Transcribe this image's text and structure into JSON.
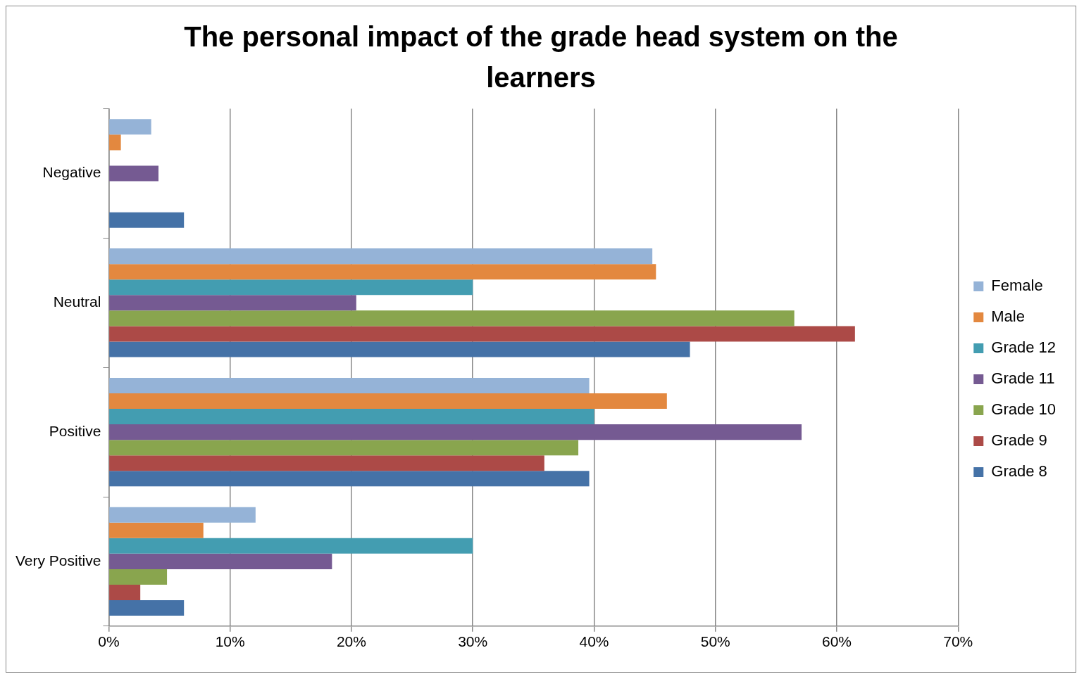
{
  "chart_data": {
    "type": "bar",
    "orientation": "horizontal",
    "title": "The personal impact of the grade head system on the learners",
    "categories": [
      "Negative",
      "Neutral",
      "Positive",
      "Very Positive"
    ],
    "series": [
      {
        "name": "Female",
        "color": "#95b3d7",
        "values": [
          3.5,
          44.8,
          39.6,
          12.1
        ]
      },
      {
        "name": "Male",
        "color": "#e3883f",
        "values": [
          1.0,
          45.1,
          46.0,
          7.8
        ]
      },
      {
        "name": "Grade 12",
        "color": "#439db1",
        "values": [
          null,
          30.0,
          40.0,
          30.0
        ]
      },
      {
        "name": "Grade 11",
        "color": "#755a92",
        "values": [
          4.1,
          20.4,
          57.1,
          18.4
        ]
      },
      {
        "name": "Grade 10",
        "color": "#89a54e",
        "values": [
          null,
          56.5,
          38.7,
          4.8
        ]
      },
      {
        "name": "Grade 9",
        "color": "#ac4a47",
        "values": [
          null,
          61.5,
          35.9,
          2.6
        ]
      },
      {
        "name": "Grade 8",
        "color": "#4572a7",
        "values": [
          6.2,
          47.9,
          39.6,
          6.2
        ]
      }
    ],
    "xlim": [
      0,
      70
    ],
    "xticks": [
      {
        "value": 0,
        "label": "0%"
      },
      {
        "value": 10,
        "label": "10%"
      },
      {
        "value": 20,
        "label": "20%"
      },
      {
        "value": 30,
        "label": "30%"
      },
      {
        "value": 40,
        "label": "40%"
      },
      {
        "value": 50,
        "label": "50%"
      },
      {
        "value": 60,
        "label": "60%"
      },
      {
        "value": 70,
        "label": "70%"
      }
    ],
    "grid": "x",
    "legend": "right"
  }
}
